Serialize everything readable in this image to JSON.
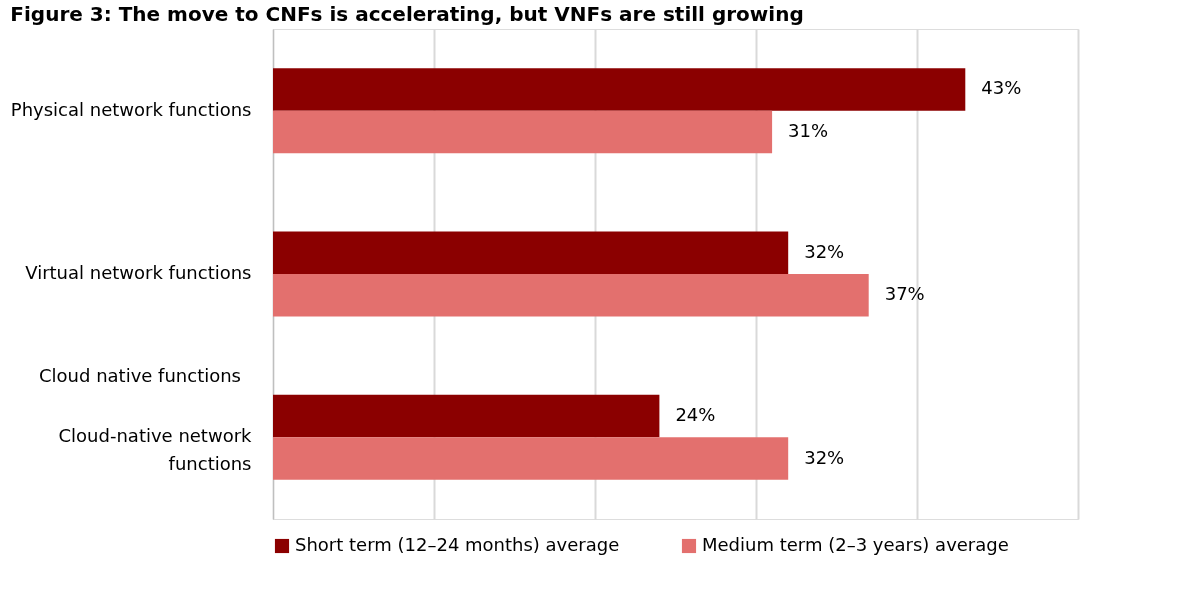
{
  "chart_data": {
    "type": "bar",
    "orientation": "horizontal",
    "title": "Figure 3: The move to CNFs is accelerating, but VNFs are still growing",
    "categories": [
      "Physical network functions",
      "Virtual network functions",
      "Cloud-native network functions"
    ],
    "series": [
      {
        "name": "Short term (12–24 months) average",
        "color": "#8b0000",
        "values": [
          43,
          32,
          24
        ],
        "value_labels": [
          "43%",
          "32%",
          "24%"
        ]
      },
      {
        "name": "Medium term (2–3 years) average",
        "color": "#e3706e",
        "values": [
          31,
          37,
          32
        ],
        "value_labels": [
          "31%",
          "37%",
          "32%"
        ]
      }
    ],
    "xlim": [
      0,
      50
    ],
    "xticks": [
      {
        "value": 0,
        "label": null
      },
      {
        "value": 10,
        "label": null
      },
      {
        "value": 20,
        "label": null
      },
      {
        "value": 30,
        "label": null
      },
      {
        "value": 40,
        "label": null
      },
      {
        "value": 50,
        "label": null
      }
    ],
    "tick_labels": "y",
    "grid": "x",
    "legend": "bottom",
    "annotations": [
      "Cloud native functions"
    ]
  }
}
